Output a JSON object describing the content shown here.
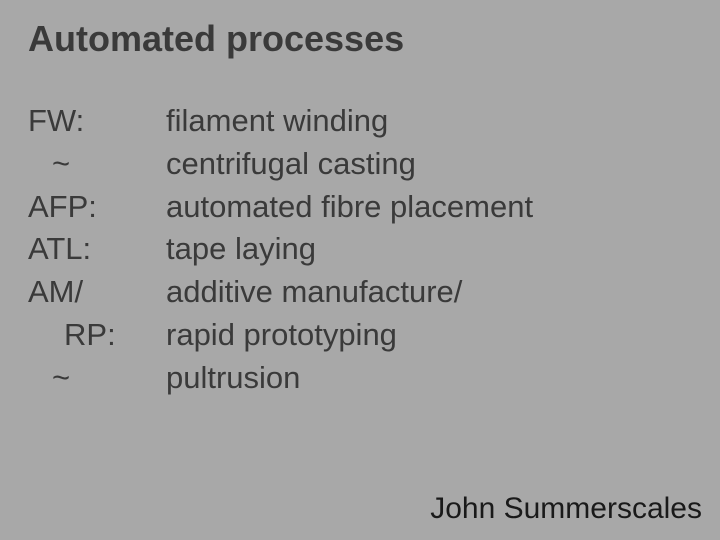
{
  "background_color": "#a8a8a8",
  "text_color": "#3a3a3a",
  "title": "Automated processes",
  "rows": [
    {
      "abbr": "FW:",
      "indent": 0,
      "desc": "filament winding"
    },
    {
      "abbr": "~",
      "indent": 1,
      "desc": "centrifugal casting"
    },
    {
      "abbr": "AFP:",
      "indent": 0,
      "desc": "automated fibre placement"
    },
    {
      "abbr": "ATL:",
      "indent": 0,
      "desc": "tape laying"
    },
    {
      "abbr": "AM/",
      "indent": 0,
      "desc": "additive manufacture/"
    },
    {
      "abbr": "RP:",
      "indent": 2,
      "desc": "rapid prototyping"
    },
    {
      "abbr": "~",
      "indent": 1,
      "desc": "pultrusion"
    }
  ],
  "footer": "John Summerscales"
}
